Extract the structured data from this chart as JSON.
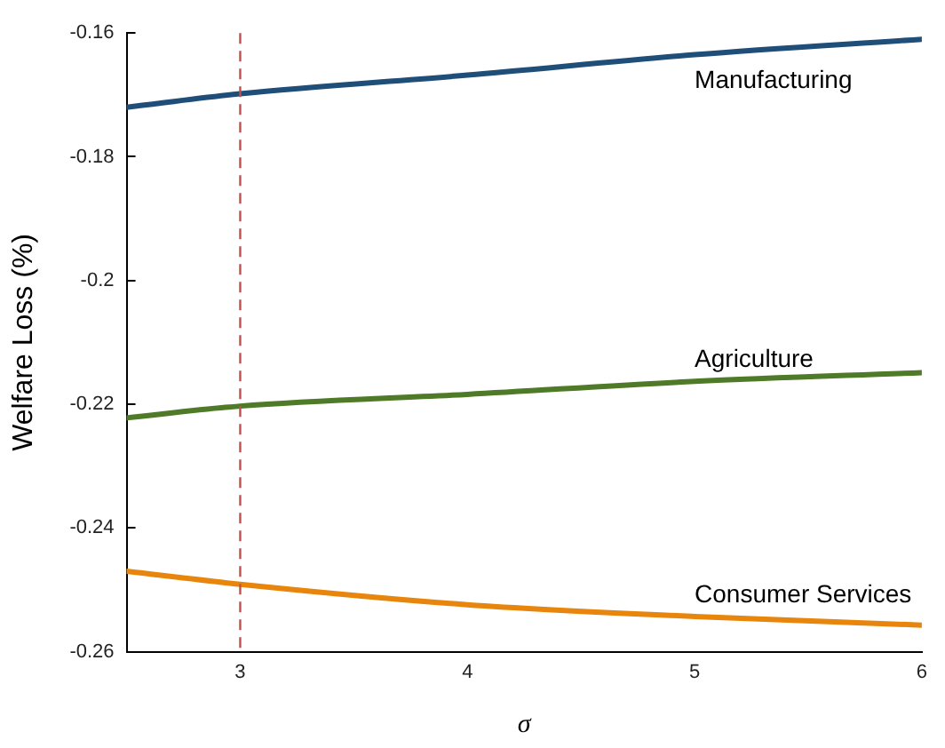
{
  "chart_data": {
    "type": "line",
    "xlabel": "σ",
    "ylabel": "Welfare Loss (%)",
    "xlim": [
      2.5,
      6
    ],
    "xticks": [
      3,
      4,
      5,
      6
    ],
    "ylim": [
      -0.26,
      -0.16
    ],
    "yticks": [
      -0.26,
      -0.24,
      -0.22,
      -0.2,
      -0.18,
      -0.16
    ],
    "grid": false,
    "legend": false,
    "marker": "none",
    "line_style": "solid",
    "series": [
      {
        "name": "Manufacturing",
        "color": "#1f4e79",
        "x": [
          2.5,
          3,
          4,
          5,
          6
        ],
        "values": [
          -0.172,
          -0.1698,
          -0.1668,
          -0.1635,
          -0.161
        ]
      },
      {
        "name": "Agriculture",
        "color": "#4f7a28",
        "x": [
          2.5,
          3,
          4,
          5,
          6
        ],
        "values": [
          -0.2222,
          -0.2203,
          -0.2184,
          -0.2163,
          -0.2149
        ]
      },
      {
        "name": "Consumer Services",
        "color": "#e8850c",
        "x": [
          2.5,
          3,
          4,
          5,
          6
        ],
        "values": [
          -0.247,
          -0.2491,
          -0.2524,
          -0.2543,
          -0.2557
        ]
      }
    ],
    "ref_lines": [
      {
        "axis": "x",
        "value": 3,
        "color": "#c0504d",
        "line_style": "dashed"
      }
    ]
  }
}
